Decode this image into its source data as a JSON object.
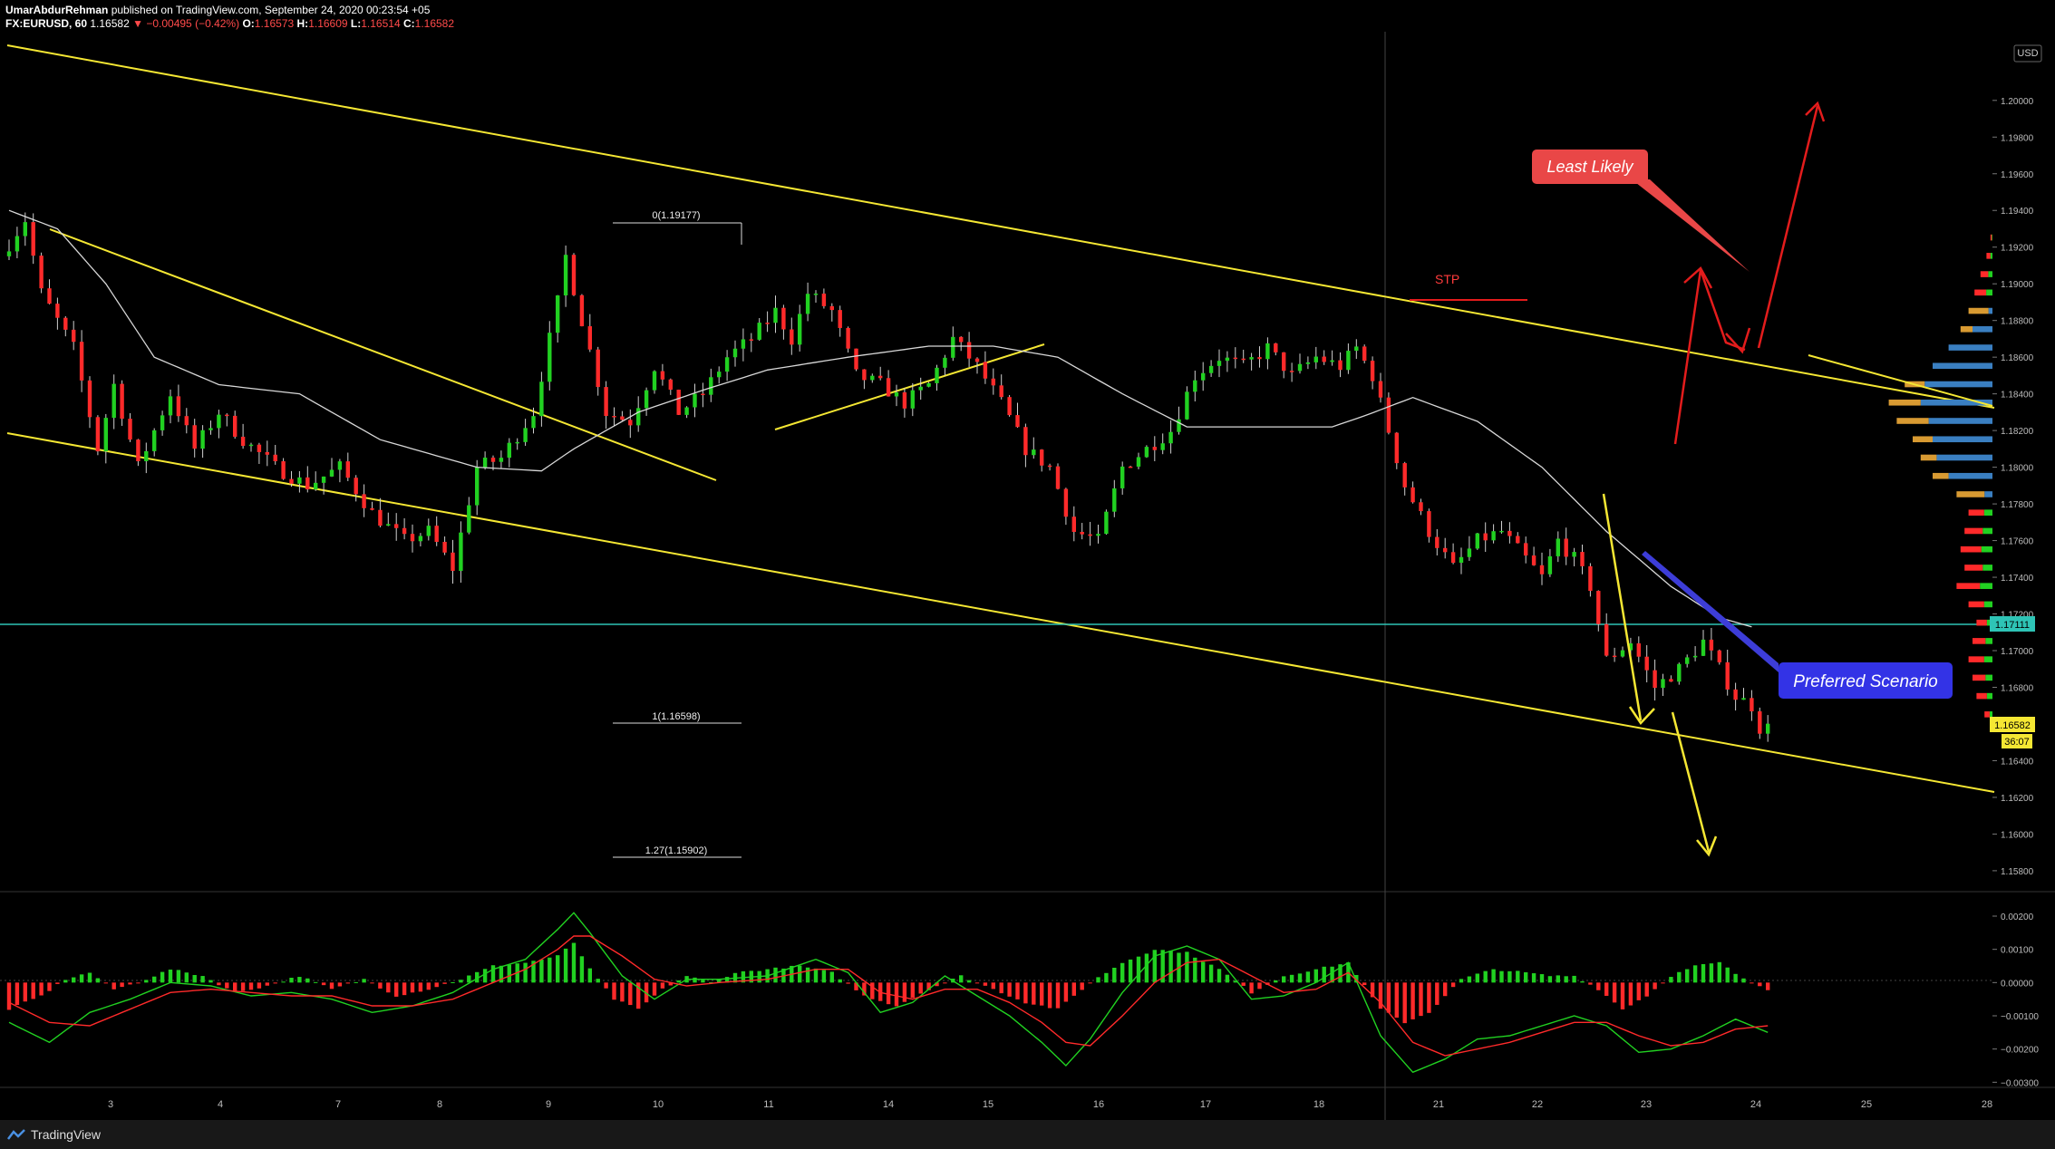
{
  "header": {
    "author": "UmarAbdurRehman",
    "published": "published on TradingView.com, September 24, 2020 00:23:54 +05",
    "symbol": "FX:EURUSD, 60",
    "last": "1.16582",
    "change": "−0.00495 (−0.42%)",
    "o_label": "O:",
    "o": "1.16573",
    "h_label": "H:",
    "h": "1.16609",
    "l_label": "L:",
    "l": "1.16514",
    "c_label": "C:",
    "c": "1.16582"
  },
  "footer": {
    "brand": "TradingView"
  },
  "colors": {
    "background": "#000000",
    "channel": "#f5e733",
    "up": "#21d121",
    "down": "#ff2a2a",
    "sma": "#d8d8d8",
    "support": "#2ec4b6",
    "arrow_red": "#e31c1c",
    "arrow_yellow": "#f5e733",
    "vp_orange": "#d89a32",
    "vp_blue": "#3a7fc1"
  },
  "chart_data": {
    "type": "candlestick",
    "currency_label": "USD",
    "price_axis": {
      "ylim": [
        1.1576,
        1.2033
      ],
      "ticks": [
        "1.20000",
        "1.19800",
        "1.19600",
        "1.19400",
        "1.19200",
        "1.19000",
        "1.18800",
        "1.18600",
        "1.18400",
        "1.18200",
        "1.18000",
        "1.17800",
        "1.17600",
        "1.17400",
        "1.17200",
        "1.17000",
        "1.16800",
        "1.16600",
        "1.16400",
        "1.16200",
        "1.16000",
        "1.15800"
      ]
    },
    "time_axis": {
      "labels": [
        "3",
        "4",
        "7",
        "8",
        "9",
        "10",
        "11",
        "14",
        "15",
        "16",
        "17",
        "18",
        "21",
        "22",
        "23",
        "24",
        "25",
        "28"
      ]
    },
    "last_price_tag": "1.16582",
    "countdown_tag": "36:07",
    "support_tag": "1.17111",
    "support_level": 1.17111,
    "fibonacci": [
      {
        "label": "0(1.19177)",
        "value": 1.19177
      },
      {
        "label": "1(1.16598)",
        "value": 1.16598
      },
      {
        "label": "1.27(1.15902)",
        "value": 1.15902
      }
    ],
    "annotations": {
      "stp": "STP",
      "least_likely": "Least Likely",
      "preferred": "Preferred Scenario"
    },
    "price_anchors": [
      [
        0,
        1.1915
      ],
      [
        3,
        1.1935
      ],
      [
        5,
        1.1895
      ],
      [
        9,
        1.1865
      ],
      [
        12,
        1.181
      ],
      [
        14,
        1.1845
      ],
      [
        17,
        1.18
      ],
      [
        21,
        1.184
      ],
      [
        24,
        1.181
      ],
      [
        27,
        1.183
      ],
      [
        30,
        1.1815
      ],
      [
        34,
        1.18
      ],
      [
        38,
        1.179
      ],
      [
        42,
        1.18
      ],
      [
        46,
        1.1775
      ],
      [
        50,
        1.176
      ],
      [
        53,
        1.1765
      ],
      [
        56,
        1.1745
      ],
      [
        59,
        1.18
      ],
      [
        62,
        1.1805
      ],
      [
        66,
        1.183
      ],
      [
        69,
        1.189
      ],
      [
        70,
        1.1915
      ],
      [
        72,
        1.188
      ],
      [
        75,
        1.183
      ],
      [
        78,
        1.1825
      ],
      [
        81,
        1.1855
      ],
      [
        84,
        1.183
      ],
      [
        87,
        1.184
      ],
      [
        90,
        1.186
      ],
      [
        93,
        1.187
      ],
      [
        96,
        1.1885
      ],
      [
        98,
        1.187
      ],
      [
        100,
        1.1895
      ],
      [
        103,
        1.1885
      ],
      [
        106,
        1.185
      ],
      [
        109,
        1.1845
      ],
      [
        112,
        1.1835
      ],
      [
        115,
        1.1845
      ],
      [
        118,
        1.187
      ],
      [
        121,
        1.1855
      ],
      [
        124,
        1.1835
      ],
      [
        127,
        1.181
      ],
      [
        130,
        1.18
      ],
      [
        133,
        1.1765
      ],
      [
        136,
        1.176
      ],
      [
        139,
        1.18
      ],
      [
        142,
        1.181
      ],
      [
        145,
        1.182
      ],
      [
        148,
        1.185
      ],
      [
        151,
        1.186
      ],
      [
        154,
        1.1855
      ],
      [
        157,
        1.1865
      ],
      [
        160,
        1.185
      ],
      [
        163,
        1.186
      ],
      [
        166,
        1.1855
      ],
      [
        168,
        1.1865
      ],
      [
        170,
        1.185
      ],
      [
        172,
        1.182
      ],
      [
        174,
        1.179
      ],
      [
        177,
        1.1765
      ],
      [
        180,
        1.1745
      ],
      [
        183,
        1.176
      ],
      [
        186,
        1.1765
      ],
      [
        189,
        1.175
      ],
      [
        191,
        1.174
      ],
      [
        193,
        1.176
      ],
      [
        195,
        1.175
      ],
      [
        197,
        1.1735
      ],
      [
        199,
        1.1695
      ],
      [
        202,
        1.1705
      ],
      [
        205,
        1.168
      ],
      [
        208,
        1.169
      ],
      [
        211,
        1.1705
      ],
      [
        213,
        1.169
      ],
      [
        215,
        1.1675
      ],
      [
        217,
        1.167
      ],
      [
        218,
        1.1658
      ]
    ],
    "sma_anchors": [
      [
        0,
        1.194
      ],
      [
        6,
        1.193
      ],
      [
        12,
        1.19
      ],
      [
        18,
        1.186
      ],
      [
        26,
        1.1845
      ],
      [
        36,
        1.184
      ],
      [
        46,
        1.1815
      ],
      [
        58,
        1.18
      ],
      [
        66,
        1.1798
      ],
      [
        70,
        1.181
      ],
      [
        78,
        1.183
      ],
      [
        86,
        1.1842
      ],
      [
        94,
        1.1853
      ],
      [
        104,
        1.186
      ],
      [
        114,
        1.1866
      ],
      [
        122,
        1.1866
      ],
      [
        130,
        1.186
      ],
      [
        138,
        1.184
      ],
      [
        146,
        1.1822
      ],
      [
        156,
        1.1822
      ],
      [
        164,
        1.1822
      ],
      [
        168,
        1.1828
      ],
      [
        174,
        1.1838
      ],
      [
        182,
        1.1825
      ],
      [
        190,
        1.18
      ],
      [
        198,
        1.1765
      ],
      [
        206,
        1.1735
      ],
      [
        212,
        1.1718
      ],
      [
        216,
        1.1713
      ]
    ],
    "volume_profile": {
      "bins": [
        [
          1.1925,
          1,
          0
        ],
        [
          1.1915,
          3,
          0
        ],
        [
          1.1905,
          6,
          0
        ],
        [
          1.1895,
          9,
          0
        ],
        [
          1.1885,
          12,
          2
        ],
        [
          1.1875,
          16,
          10
        ],
        [
          1.1865,
          22,
          22
        ],
        [
          1.1855,
          30,
          30
        ],
        [
          1.1845,
          44,
          34
        ],
        [
          1.1835,
          52,
          36
        ],
        [
          1.1825,
          48,
          32
        ],
        [
          1.1815,
          40,
          30
        ],
        [
          1.1805,
          36,
          28
        ],
        [
          1.1795,
          30,
          22
        ],
        [
          1.1785,
          18,
          4
        ],
        [
          1.1775,
          12,
          0
        ],
        [
          1.1765,
          14,
          0
        ],
        [
          1.1755,
          16,
          0
        ],
        [
          1.1745,
          14,
          0
        ],
        [
          1.1735,
          18,
          0
        ],
        [
          1.1725,
          12,
          0
        ],
        [
          1.1715,
          8,
          0
        ],
        [
          1.1705,
          10,
          0
        ],
        [
          1.1695,
          12,
          0
        ],
        [
          1.1685,
          10,
          0
        ],
        [
          1.1675,
          8,
          0
        ],
        [
          1.1665,
          4,
          0
        ]
      ]
    },
    "macd": {
      "axis_ticks": [
        "0.00200",
        "0.00100",
        "0.00000",
        "−0.00100",
        "−0.00200",
        "−0.00300"
      ],
      "ylim": [
        -0.0031,
        0.0023
      ],
      "hist_anchors": [
        [
          0,
          -0.0008
        ],
        [
          4,
          -0.0004
        ],
        [
          7,
          0.0001
        ],
        [
          10,
          0.0003
        ],
        [
          13,
          -0.0002
        ],
        [
          16,
          0.0
        ],
        [
          20,
          0.0004
        ],
        [
          24,
          0.0002
        ],
        [
          28,
          -0.0003
        ],
        [
          32,
          -0.0001
        ],
        [
          36,
          0.0002
        ],
        [
          40,
          -0.0002
        ],
        [
          44,
          0.0001
        ],
        [
          48,
          -0.0004
        ],
        [
          52,
          -0.0002
        ],
        [
          56,
          0.0001
        ],
        [
          60,
          0.0005
        ],
        [
          64,
          0.0006
        ],
        [
          68,
          0.0008
        ],
        [
          70,
          0.0012
        ],
        [
          72,
          0.0004
        ],
        [
          75,
          -0.0005
        ],
        [
          78,
          -0.0008
        ],
        [
          81,
          -0.0002
        ],
        [
          84,
          0.0002
        ],
        [
          87,
          0.0
        ],
        [
          90,
          0.0003
        ],
        [
          94,
          0.0004
        ],
        [
          98,
          0.0005
        ],
        [
          102,
          0.0003
        ],
        [
          106,
          -0.0004
        ],
        [
          110,
          -0.0007
        ],
        [
          114,
          -0.0002
        ],
        [
          118,
          0.0002
        ],
        [
          122,
          -0.0002
        ],
        [
          126,
          -0.0006
        ],
        [
          130,
          -0.0008
        ],
        [
          134,
          0.0
        ],
        [
          138,
          0.0006
        ],
        [
          142,
          0.001
        ],
        [
          146,
          0.0009
        ],
        [
          150,
          0.0004
        ],
        [
          154,
          -0.0003
        ],
        [
          158,
          0.0002
        ],
        [
          162,
          0.0004
        ],
        [
          166,
          0.0006
        ],
        [
          170,
          -0.0008
        ],
        [
          173,
          -0.0012
        ],
        [
          176,
          -0.0009
        ],
        [
          180,
          0.0001
        ],
        [
          184,
          0.0004
        ],
        [
          188,
          0.0003
        ],
        [
          191,
          0.0002
        ],
        [
          194,
          0.0002
        ],
        [
          197,
          -0.0002
        ],
        [
          200,
          -0.0008
        ],
        [
          203,
          -0.0004
        ],
        [
          206,
          0.0002
        ],
        [
          209,
          0.0005
        ],
        [
          212,
          0.0006
        ],
        [
          215,
          0.0001
        ],
        [
          218,
          -0.0002
        ]
      ],
      "macd_anchors": [
        [
          0,
          -0.0012
        ],
        [
          5,
          -0.0018
        ],
        [
          10,
          -0.0009
        ],
        [
          15,
          -0.0005
        ],
        [
          20,
          0.0
        ],
        [
          25,
          -0.0001
        ],
        [
          30,
          -0.0004
        ],
        [
          35,
          -0.0003
        ],
        [
          40,
          -0.0005
        ],
        [
          45,
          -0.0009
        ],
        [
          50,
          -0.0007
        ],
        [
          55,
          -0.0003
        ],
        [
          60,
          0.0004
        ],
        [
          64,
          0.0007
        ],
        [
          68,
          0.0016
        ],
        [
          70,
          0.0021
        ],
        [
          72,
          0.0015
        ],
        [
          76,
          0.0002
        ],
        [
          80,
          -0.0005
        ],
        [
          84,
          0.0001
        ],
        [
          88,
          0.0001
        ],
        [
          94,
          0.0002
        ],
        [
          100,
          0.0007
        ],
        [
          104,
          0.0003
        ],
        [
          108,
          -0.0009
        ],
        [
          112,
          -0.0006
        ],
        [
          116,
          0.0002
        ],
        [
          120,
          -0.0004
        ],
        [
          124,
          -0.001
        ],
        [
          128,
          -0.0018
        ],
        [
          131,
          -0.0025
        ],
        [
          134,
          -0.0017
        ],
        [
          138,
          -0.0003
        ],
        [
          142,
          0.0008
        ],
        [
          146,
          0.0011
        ],
        [
          150,
          0.0007
        ],
        [
          154,
          -0.0005
        ],
        [
          158,
          -0.0004
        ],
        [
          162,
          0.0
        ],
        [
          166,
          0.0006
        ],
        [
          170,
          -0.0016
        ],
        [
          174,
          -0.0027
        ],
        [
          178,
          -0.0023
        ],
        [
          182,
          -0.0017
        ],
        [
          186,
          -0.0016
        ],
        [
          190,
          -0.0013
        ],
        [
          194,
          -0.001
        ],
        [
          198,
          -0.0013
        ],
        [
          202,
          -0.0021
        ],
        [
          206,
          -0.002
        ],
        [
          210,
          -0.0016
        ],
        [
          214,
          -0.0011
        ],
        [
          218,
          -0.0015
        ]
      ],
      "signal_anchors": [
        [
          0,
          -0.0006
        ],
        [
          5,
          -0.0012
        ],
        [
          10,
          -0.0013
        ],
        [
          15,
          -0.0008
        ],
        [
          20,
          -0.0003
        ],
        [
          25,
          -0.0002
        ],
        [
          30,
          -0.0003
        ],
        [
          35,
          -0.0004
        ],
        [
          40,
          -0.0004
        ],
        [
          45,
          -0.0007
        ],
        [
          50,
          -0.0007
        ],
        [
          55,
          -0.0005
        ],
        [
          60,
          0.0
        ],
        [
          64,
          0.0004
        ],
        [
          68,
          0.001
        ],
        [
          70,
          0.0014
        ],
        [
          72,
          0.0014
        ],
        [
          76,
          0.0008
        ],
        [
          80,
          0.0001
        ],
        [
          84,
          -0.0001
        ],
        [
          88,
          0.0
        ],
        [
          94,
          0.0001
        ],
        [
          100,
          0.0004
        ],
        [
          104,
          0.0004
        ],
        [
          108,
          -0.0003
        ],
        [
          112,
          -0.0005
        ],
        [
          116,
          -0.0002
        ],
        [
          120,
          -0.0002
        ],
        [
          124,
          -0.0006
        ],
        [
          128,
          -0.0012
        ],
        [
          131,
          -0.0018
        ],
        [
          134,
          -0.0019
        ],
        [
          138,
          -0.001
        ],
        [
          142,
          0.0
        ],
        [
          146,
          0.0006
        ],
        [
          150,
          0.0007
        ],
        [
          154,
          0.0002
        ],
        [
          158,
          -0.0003
        ],
        [
          162,
          -0.0002
        ],
        [
          166,
          0.0003
        ],
        [
          170,
          -0.0006
        ],
        [
          174,
          -0.0018
        ],
        [
          178,
          -0.0022
        ],
        [
          182,
          -0.002
        ],
        [
          186,
          -0.0018
        ],
        [
          190,
          -0.0015
        ],
        [
          194,
          -0.0012
        ],
        [
          198,
          -0.0012
        ],
        [
          202,
          -0.0016
        ],
        [
          206,
          -0.0019
        ],
        [
          210,
          -0.0018
        ],
        [
          214,
          -0.0014
        ],
        [
          218,
          -0.0013
        ]
      ]
    }
  }
}
